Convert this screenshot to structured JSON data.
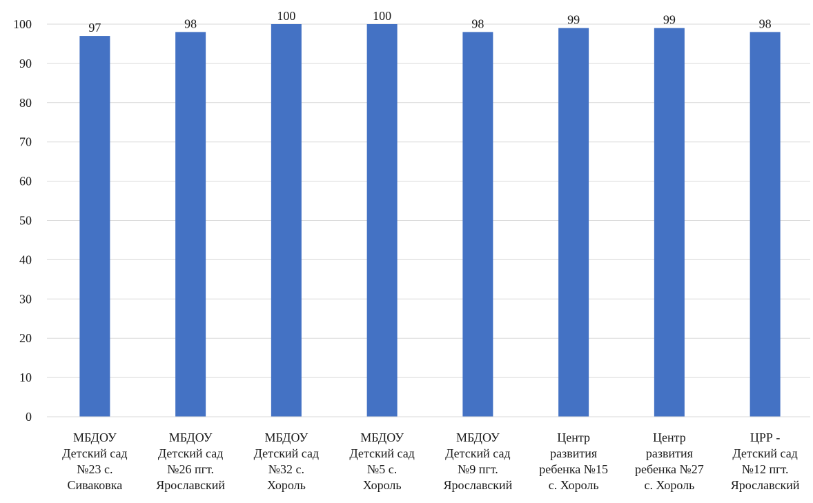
{
  "chart_data": {
    "type": "bar",
    "categories": [
      [
        "МБДОУ",
        "Детский сад",
        "№23 с.",
        "Сиваковка"
      ],
      [
        "МБДОУ",
        "Детский сад",
        "№26 пгт.",
        "Ярославский"
      ],
      [
        "МБДОУ",
        "Детский сад",
        "№32 с.",
        "Хороль"
      ],
      [
        "МБДОУ",
        "Детский сад",
        "№5 с.",
        "Хороль"
      ],
      [
        "МБДОУ",
        "Детский сад",
        "№9 пгт.",
        "Ярославский"
      ],
      [
        "Центр",
        "развития",
        "ребенка №15",
        "с. Хороль"
      ],
      [
        "Центр",
        "развития",
        "ребенка №27",
        "с. Хороль"
      ],
      [
        "ЦРР -",
        "Детский сад",
        "№12 пгт.",
        "Ярославский"
      ]
    ],
    "values": [
      97,
      98,
      100,
      100,
      98,
      99,
      99,
      98
    ],
    "ylim": [
      0,
      100
    ],
    "yticks": [
      0,
      10,
      20,
      30,
      40,
      50,
      60,
      70,
      80,
      90,
      100
    ],
    "grid": true,
    "bar_color": "#4472C4",
    "grid_color": "#d9d9d9"
  }
}
